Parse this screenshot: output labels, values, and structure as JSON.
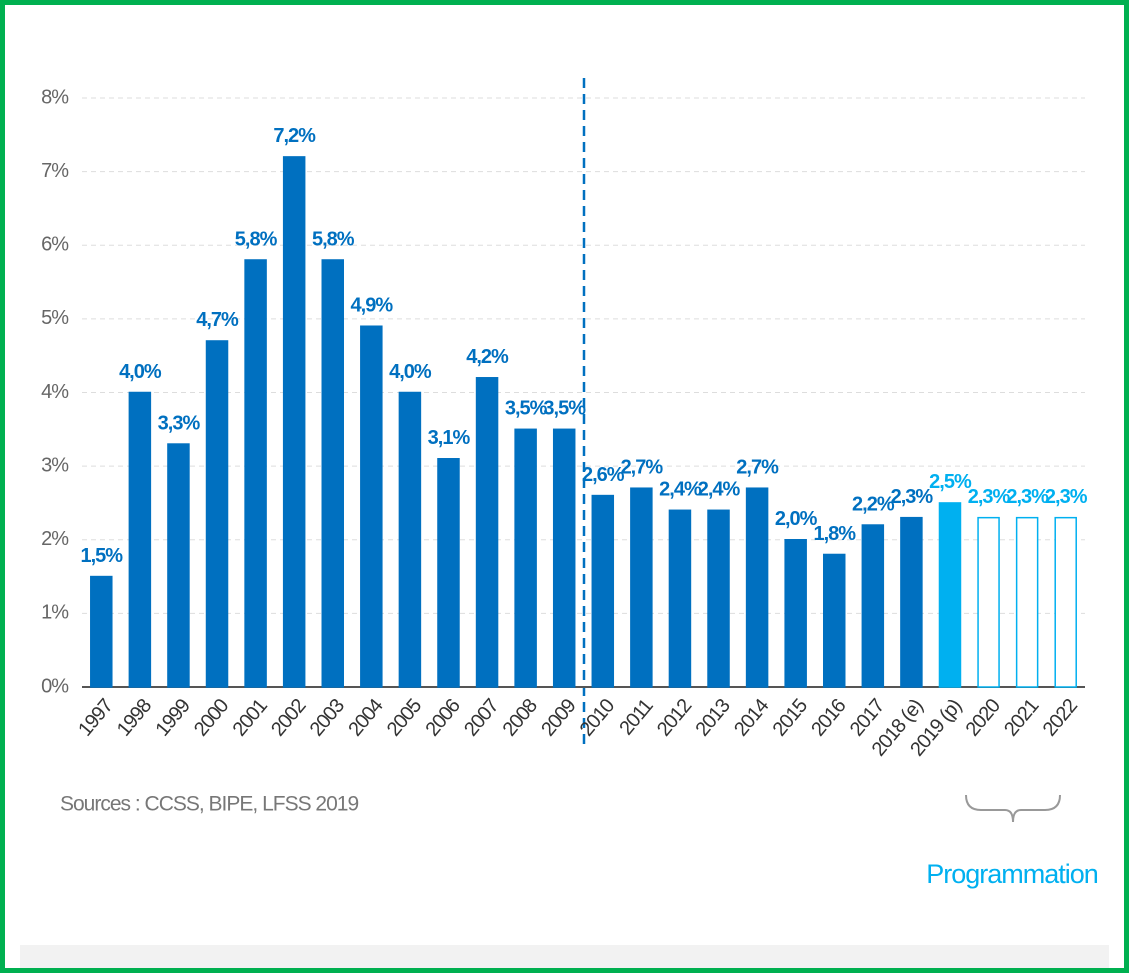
{
  "chart_data": {
    "type": "bar",
    "categories": [
      "1997",
      "1998",
      "1999",
      "2000",
      "2001",
      "2002",
      "2003",
      "2004",
      "2005",
      "2006",
      "2007",
      "2008",
      "2009",
      "2010",
      "2011",
      "2012",
      "2013",
      "2014",
      "2015",
      "2016",
      "2017",
      "2018 (e)",
      "2019 (p)",
      "2020",
      "2021",
      "2022"
    ],
    "values": [
      1.5,
      4.0,
      3.3,
      4.7,
      5.8,
      7.2,
      5.8,
      4.9,
      4.0,
      3.1,
      4.2,
      3.5,
      3.5,
      2.6,
      2.7,
      2.4,
      2.4,
      2.7,
      2.0,
      1.8,
      2.2,
      2.3,
      2.5,
      2.3,
      2.3,
      2.3
    ],
    "value_labels": [
      "1,5%",
      "4,0%",
      "3,3%",
      "4,7%",
      "5,8%",
      "7,2%",
      "5,8%",
      "4,9%",
      "4,0%",
      "3,1%",
      "4,2%",
      "3,5%",
      "3,5%",
      "2,6%",
      "2,7%",
      "2,4%",
      "2,4%",
      "2,7%",
      "2,0%",
      "1,8%",
      "2,2%",
      "2,3%",
      "2,5%",
      "2,3%",
      "2,3%",
      "2,3%"
    ],
    "colors": [
      "#0070c0",
      "#0070c0",
      "#0070c0",
      "#0070c0",
      "#0070c0",
      "#0070c0",
      "#0070c0",
      "#0070c0",
      "#0070c0",
      "#0070c0",
      "#0070c0",
      "#0070c0",
      "#0070c0",
      "#0070c0",
      "#0070c0",
      "#0070c0",
      "#0070c0",
      "#0070c0",
      "#0070c0",
      "#0070c0",
      "#0070c0",
      "#0070c0",
      "#00b0f0",
      "#00b0f0",
      "#00b0f0",
      "#00b0f0"
    ],
    "fills": [
      "#0070c0",
      "#0070c0",
      "#0070c0",
      "#0070c0",
      "#0070c0",
      "#0070c0",
      "#0070c0",
      "#0070c0",
      "#0070c0",
      "#0070c0",
      "#0070c0",
      "#0070c0",
      "#0070c0",
      "#0070c0",
      "#0070c0",
      "#0070c0",
      "#0070c0",
      "#0070c0",
      "#0070c0",
      "#0070c0",
      "#0070c0",
      "#0070c0",
      "#00b0f0",
      "#ffffff",
      "#ffffff",
      "#ffffff"
    ],
    "ylim": [
      0,
      8
    ],
    "yticks": [
      {
        "value": 0,
        "label": "0%"
      },
      {
        "value": 1,
        "label": "1%"
      },
      {
        "value": 2,
        "label": "2%"
      },
      {
        "value": 3,
        "label": "3%"
      },
      {
        "value": 4,
        "label": "4%"
      },
      {
        "value": 5,
        "label": "5%"
      },
      {
        "value": 6,
        "label": "6%"
      },
      {
        "value": 7,
        "label": "7%"
      },
      {
        "value": 8,
        "label": "8%"
      }
    ],
    "grid": true,
    "source": "Sources : CCSS, BIPE, LFSS 2019",
    "annotation": "Programmation"
  }
}
